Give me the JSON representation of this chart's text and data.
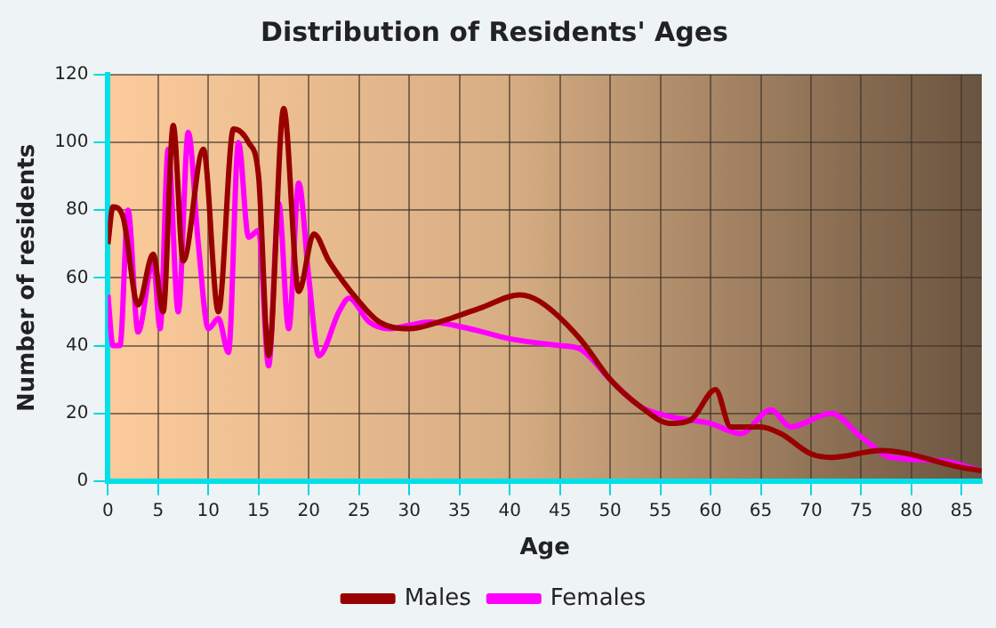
{
  "chart_data": {
    "type": "line",
    "title": "Distribution of Residents' Ages",
    "xlabel": "Age",
    "ylabel": "Number of residents",
    "xlim": [
      0,
      87
    ],
    "xticks": [
      0,
      5,
      10,
      15,
      20,
      25,
      30,
      35,
      40,
      45,
      50,
      55,
      60,
      65,
      70,
      75,
      80,
      85
    ],
    "ylim": [
      0,
      120
    ],
    "yticks": [
      0,
      20,
      40,
      60,
      80,
      100,
      120
    ],
    "grid": true,
    "legend": "bottom",
    "marker": "none",
    "line_style": "solid",
    "series": [
      {
        "name": "Males",
        "color": "#990000",
        "x": [
          0,
          0.5,
          1.5,
          3,
          4.5,
          5.5,
          6.5,
          7.5,
          9.5,
          11,
          12.5,
          14,
          15,
          16,
          17.5,
          19,
          20.5,
          22,
          25,
          27,
          30,
          33,
          37,
          41,
          43,
          47,
          50,
          53,
          56,
          58,
          60.5,
          62,
          65,
          67,
          70,
          72,
          77,
          85,
          87
        ],
        "values": [
          70,
          81,
          78,
          52,
          67,
          50,
          105,
          65,
          98,
          50,
          104,
          100,
          90,
          37,
          110,
          56,
          73,
          65,
          53,
          47,
          45,
          47,
          51,
          55,
          53,
          42,
          30,
          22,
          17,
          18,
          27,
          16,
          16,
          14,
          8,
          7,
          9,
          4,
          3
        ]
      },
      {
        "name": "Females",
        "color": "#ff00ff",
        "x": [
          0,
          0.5,
          1.2,
          2,
          3,
          4.5,
          5.2,
          6,
          7,
          8,
          9,
          10,
          11,
          12,
          13,
          14,
          15,
          16,
          17,
          18,
          19,
          20,
          21,
          23,
          24,
          26,
          28,
          30,
          32,
          36,
          40,
          45,
          47,
          50,
          53,
          56,
          60,
          63,
          66,
          68,
          72,
          75,
          78,
          83,
          87
        ],
        "values": [
          55,
          40,
          40,
          80,
          44,
          65,
          45,
          98,
          50,
          103,
          70,
          45,
          48,
          38,
          100,
          72,
          74,
          34,
          82,
          45,
          88,
          60,
          37,
          50,
          54,
          47,
          45,
          46,
          47,
          45,
          42,
          40,
          39,
          30,
          22,
          19,
          17,
          14,
          21,
          16,
          20,
          13,
          7,
          6,
          3
        ]
      }
    ]
  }
}
